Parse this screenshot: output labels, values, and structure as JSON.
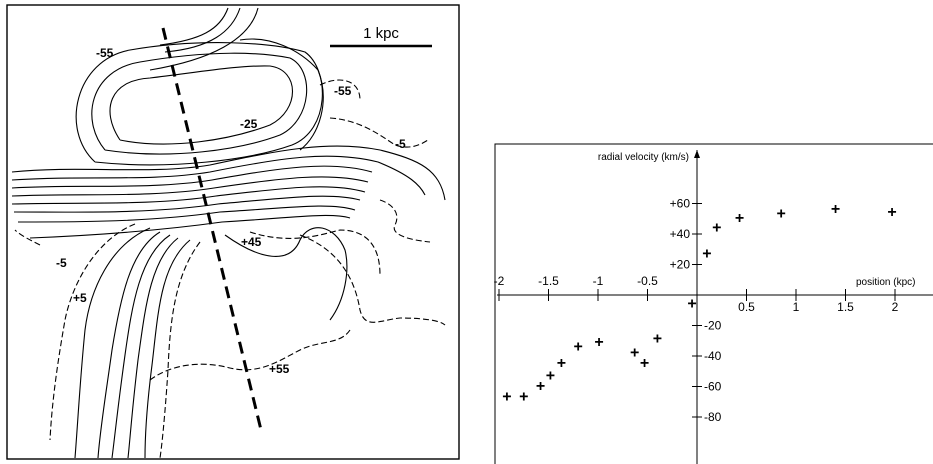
{
  "map_panel": {
    "scale_bar_label": "1 kpc",
    "contour_labels": [
      "-55",
      "-55",
      "-25",
      "-5",
      "+45",
      "-5",
      "+5",
      "+55"
    ]
  },
  "chart_data": {
    "type": "scatter",
    "title": "",
    "xlabel": "position (kpc)",
    "ylabel": "radial velocity (km/s)",
    "xlim": [
      -2,
      2.4
    ],
    "ylim": [
      -85,
      65
    ],
    "x_ticks": [
      -2,
      -1.5,
      -1,
      -0.5,
      0.5,
      1,
      1.5,
      2
    ],
    "x_tick_labels": [
      "-2",
      "-1.5",
      "-1",
      "-0.5",
      "0.5",
      "1",
      "1.5",
      "2"
    ],
    "y_ticks": [
      60,
      40,
      20,
      -20,
      -40,
      -60,
      -80
    ],
    "y_tick_labels": [
      "+60",
      "+40",
      "+20",
      "-20",
      "-40",
      "-60",
      "-80"
    ],
    "marker": "+",
    "grid": false,
    "legend": "none",
    "x": [
      -1.92,
      -1.75,
      -1.58,
      -1.48,
      -1.37,
      -1.2,
      -0.99,
      -0.63,
      -0.53,
      -0.4,
      -0.05,
      0.1,
      0.2,
      0.43,
      0.85,
      1.4,
      1.97
    ],
    "y": [
      -66,
      -66,
      -59,
      -52,
      -44,
      -33,
      -30,
      -37,
      -44,
      -28,
      -5,
      28,
      45,
      51,
      54,
      57,
      55
    ]
  }
}
